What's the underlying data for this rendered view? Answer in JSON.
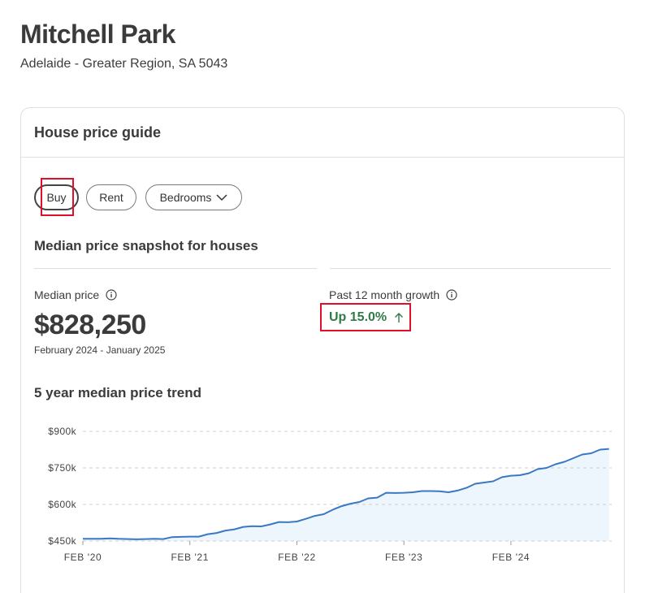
{
  "header": {
    "title": "Mitchell Park",
    "subtitle": "Adelaide - Greater Region, SA 5043"
  },
  "card": {
    "title": "House price guide",
    "tabs": {
      "buy": "Buy",
      "rent": "Rent",
      "bedrooms": "Bedrooms",
      "selected": "Buy"
    },
    "snapshot_title": "Median price snapshot for houses",
    "median": {
      "label": "Median price",
      "value": "$828,250",
      "period": "February 2024 - January 2025"
    },
    "growth": {
      "label": "Past 12 month growth",
      "value": "Up 15.0%"
    },
    "trend_title": "5 year median price trend"
  },
  "icons": {
    "info": "info-icon",
    "chevron": "chevron-down-icon",
    "growth_arrow": "arrow-up-icon"
  },
  "colors": {
    "accent_line": "#3a78c2",
    "area_fill": "#ecf6fc",
    "growth_green": "#2f7a47",
    "highlight": "#e0102a"
  },
  "chart_data": {
    "type": "area",
    "title": "5 year median price trend",
    "xlabel": "",
    "ylabel": "",
    "ylim": [
      450000,
      900000
    ],
    "y_ticks": [
      450000,
      600000,
      750000,
      900000
    ],
    "y_tick_labels": [
      "$450k",
      "$600k",
      "$750k",
      "$900k"
    ],
    "x_tick_labels": [
      "FEB '20",
      "FEB '21",
      "FEB '22",
      "FEB '23",
      "FEB '24"
    ],
    "x_tick_months": [
      0,
      12,
      24,
      36,
      48
    ],
    "grid": true,
    "series": [
      {
        "x_months": [
          0,
          2,
          3,
          4,
          6,
          7,
          8,
          9,
          10,
          11,
          12,
          13,
          14,
          15,
          16,
          17,
          18,
          19,
          20,
          21,
          22,
          23,
          24,
          25,
          26,
          27,
          28,
          29,
          30,
          31,
          32,
          33,
          34,
          35,
          36,
          37,
          38,
          39,
          40,
          41,
          42,
          43,
          44,
          45,
          46,
          47,
          48,
          49,
          50,
          51,
          52,
          53,
          54,
          55,
          56,
          57,
          58,
          59
        ],
        "values": [
          459000,
          459000,
          461000,
          459000,
          457000,
          458000,
          459000,
          458000,
          466000,
          467000,
          468000,
          468000,
          478000,
          483000,
          493000,
          498000,
          508000,
          511000,
          510000,
          518000,
          528000,
          527000,
          530000,
          541000,
          553000,
          560000,
          578000,
          593000,
          603000,
          610000,
          625000,
          628000,
          648000,
          647000,
          648000,
          650000,
          655000,
          655000,
          654000,
          650000,
          657000,
          668000,
          685000,
          690000,
          695000,
          712000,
          718000,
          720000,
          728000,
          745000,
          750000,
          765000,
          775000,
          790000,
          805000,
          810000,
          825000,
          828000
        ]
      }
    ]
  }
}
